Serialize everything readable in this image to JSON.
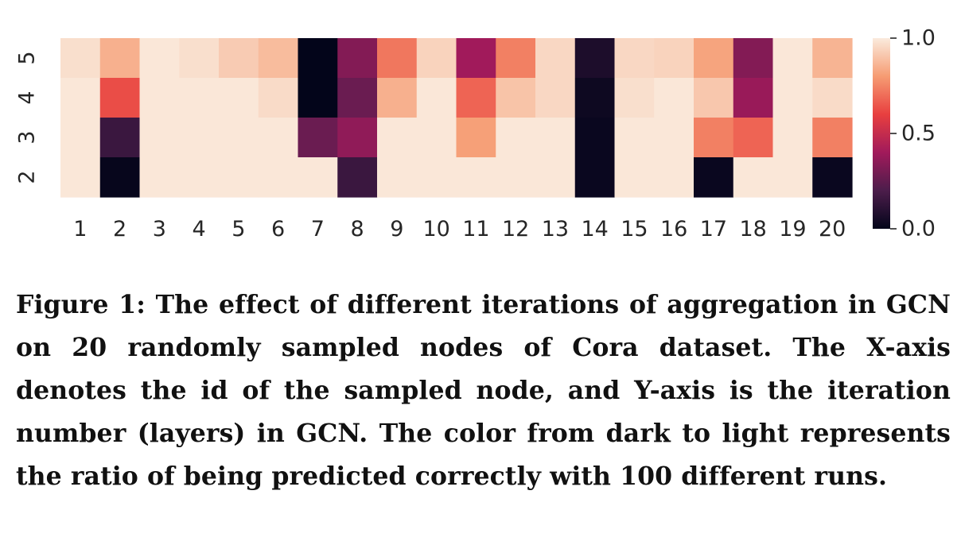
{
  "chart_data": {
    "type": "heatmap",
    "x_categories": [
      "1",
      "2",
      "3",
      "4",
      "5",
      "6",
      "7",
      "8",
      "9",
      "10",
      "11",
      "12",
      "13",
      "14",
      "15",
      "16",
      "17",
      "18",
      "19",
      "20"
    ],
    "y_categories": [
      "5",
      "4",
      "3",
      "2"
    ],
    "values": [
      [
        0.97,
        0.85,
        0.99,
        0.97,
        0.92,
        0.88,
        0.0,
        0.33,
        0.72,
        0.94,
        0.4,
        0.74,
        0.95,
        0.07,
        0.95,
        0.94,
        0.82,
        0.33,
        0.99,
        0.86
      ],
      [
        0.99,
        0.63,
        0.99,
        0.99,
        0.99,
        0.96,
        0.0,
        0.27,
        0.85,
        0.99,
        0.68,
        0.9,
        0.95,
        0.03,
        0.97,
        0.99,
        0.91,
        0.38,
        0.99,
        0.96
      ],
      [
        0.99,
        0.15,
        0.99,
        0.99,
        0.99,
        0.99,
        0.27,
        0.36,
        0.99,
        0.99,
        0.81,
        0.99,
        0.99,
        0.02,
        0.99,
        0.99,
        0.74,
        0.68,
        0.99,
        0.74
      ],
      [
        0.99,
        0.01,
        0.99,
        0.99,
        0.99,
        0.99,
        0.99,
        0.15,
        0.99,
        0.99,
        0.99,
        0.99,
        0.99,
        0.02,
        0.99,
        0.99,
        0.02,
        0.99,
        0.99,
        0.02
      ]
    ],
    "colorbar": {
      "ticks": [
        "1.0",
        "0.5",
        "0.0"
      ],
      "range": [
        0.0,
        1.0
      ]
    },
    "colormap": [
      "#03051a",
      "#4c1d4b",
      "#a11a5b",
      "#e83f3f",
      "#f69c73",
      "#faebdd"
    ],
    "title": "",
    "xlabel": "",
    "ylabel": ""
  },
  "caption": "Figure 1: The effect of different iterations of aggregation in GCN on 20 randomly sampled nodes of Cora dataset. The X-axis denotes the id of the sampled node, and Y-axis is the iteration number (layers) in GCN. The color from dark to light represents the ratio of being predicted correctly with 100 different runs."
}
